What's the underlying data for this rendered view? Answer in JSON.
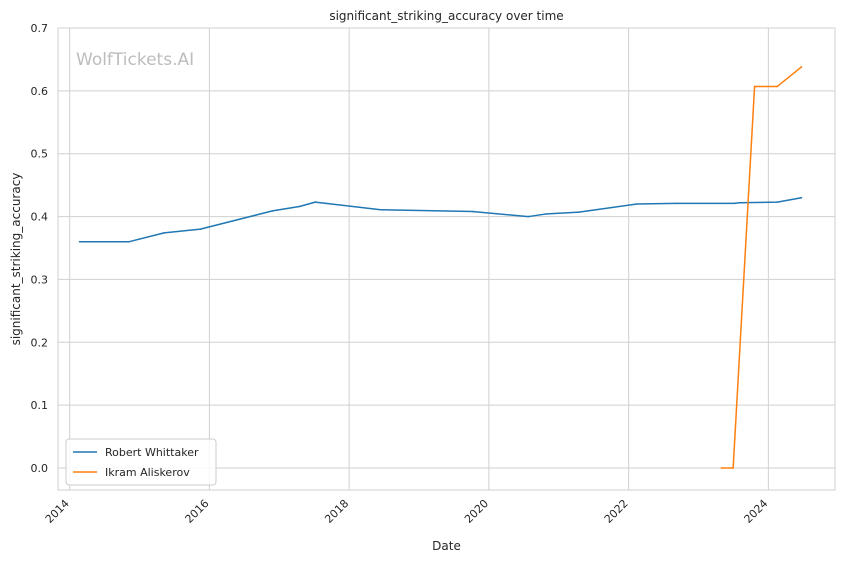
{
  "chart_data": {
    "type": "line",
    "title": "significant_striking_accuracy over time",
    "xlabel": "Date",
    "ylabel": "significant_striking_accuracy",
    "watermark": "WolfTickets.AI",
    "x_ticks": [
      "2014",
      "2016",
      "2018",
      "2020",
      "2022",
      "2024"
    ],
    "y_ticks": [
      "0.0",
      "0.1",
      "0.2",
      "0.3",
      "0.4",
      "0.5",
      "0.6",
      "0.7"
    ],
    "xlim": [
      "2013-11-01",
      "2024-12-15"
    ],
    "ylim": [
      -0.035,
      0.7
    ],
    "grid": true,
    "legend_position": "lower-left",
    "series": [
      {
        "name": "Robert Whittaker",
        "color": "#1f77b4",
        "points": [
          [
            "2014-02-22",
            0.36
          ],
          [
            "2014-11-08",
            0.36
          ],
          [
            "2015-05-09",
            0.374
          ],
          [
            "2015-11-15",
            0.38
          ],
          [
            "2016-11-26",
            0.409
          ],
          [
            "2017-04-16",
            0.416
          ],
          [
            "2017-07-08",
            0.423
          ],
          [
            "2018-06-09",
            0.411
          ],
          [
            "2019-10-06",
            0.408
          ],
          [
            "2020-07-26",
            0.4
          ],
          [
            "2020-10-24",
            0.404
          ],
          [
            "2021-04-17",
            0.407
          ],
          [
            "2022-02-12",
            0.42
          ],
          [
            "2022-09-03",
            0.421
          ],
          [
            "2023-07-08",
            0.421
          ],
          [
            "2023-08-01",
            0.422
          ],
          [
            "2024-02-17",
            0.423
          ],
          [
            "2024-06-22",
            0.43
          ]
        ]
      },
      {
        "name": "Ikram Aliskerov",
        "color": "#ff7f0e",
        "points": [
          [
            "2023-05-01",
            0.0
          ],
          [
            "2023-07-01",
            0.0
          ],
          [
            "2023-10-21",
            0.607
          ],
          [
            "2024-02-17",
            0.607
          ],
          [
            "2024-06-22",
            0.638
          ]
        ]
      }
    ]
  }
}
